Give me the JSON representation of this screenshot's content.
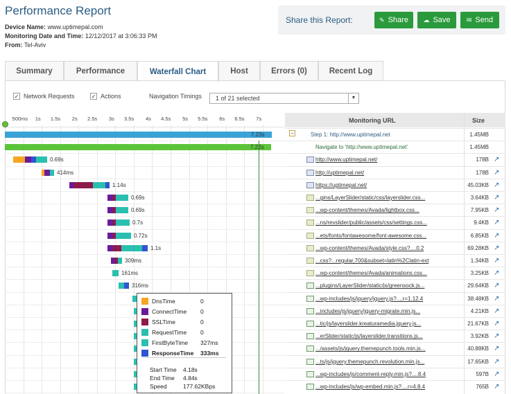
{
  "header": {
    "title": "Performance Report",
    "device_label": "Device Name:",
    "device_value": "www.uptimepal.com",
    "monitoring_label": "Monitoring Date and Time:",
    "monitoring_value": "12/12/2017 at 3:06:33 PM",
    "from_label": "From:",
    "from_value": "Tel-Aviv"
  },
  "share": {
    "title": "Share this Report:",
    "share_label": "Share",
    "save_label": "Save",
    "send_label": "Send"
  },
  "tabs": [
    "Summary",
    "Performance",
    "Waterfall Chart",
    "Host",
    "Errors (0)",
    "Recent Log"
  ],
  "active_tab": "Waterfall Chart",
  "filters": {
    "network_requests": "Network Requests",
    "actions": "Actions",
    "navigation_timings_label": "Navigation Timings",
    "navigation_timings_value": "1 of 21 selected"
  },
  "axis_ticks": [
    "500ms",
    "1s",
    "1.5s",
    "2s",
    "2.5s",
    "3s",
    "3.5s",
    "4s",
    "4.5s",
    "5s",
    "5.5s",
    "6s",
    "6.5s",
    "7s"
  ],
  "columns": {
    "url": "Monitoring URL",
    "size": "Size"
  },
  "colors": {
    "dns": "#f5a623",
    "connect": "#6a1b9a",
    "ssl": "#8e1a4a",
    "request": "#2bbfb0",
    "firstbyte": "#2bbfb0",
    "response": "#3055d0",
    "step": "#3aa3d6",
    "navigate": "#5cc43a"
  },
  "rows": [
    {
      "url": "Step 1: http://www.uptimepal.net",
      "size": "1.45MB",
      "kind": "step",
      "label": "7.23s"
    },
    {
      "url": "Navigate to 'http://www.uptimepal.net'",
      "size": "1.45MB",
      "kind": "navigate",
      "label": "7.22s"
    },
    {
      "url": "http://www.uptimepal.net/",
      "size": "178B",
      "kind": "html",
      "label": "0.69s"
    },
    {
      "url": "http://uptimepal.net/",
      "size": "178B",
      "kind": "html",
      "label": "414ms"
    },
    {
      "url": "https://uptimepal.net/",
      "size": "45.03KB",
      "kind": "html",
      "label": "1.14s"
    },
    {
      "url": "...gins/LayerSlider/static/css/layerslider.css...",
      "size": "3.64KB",
      "kind": "css",
      "label": "0.69s"
    },
    {
      "url": "...wp-content/themes/Avada/lightbox.css...",
      "size": "7.95KB",
      "kind": "css",
      "label": "0.69s"
    },
    {
      "url": "...ns/revslider/public/assets/css/settings.css...",
      "size": "9.4KB",
      "kind": "css",
      "label": "0.7s"
    },
    {
      "url": "...ets/fonts/fontawesome/font-awesome.css...",
      "size": "6.85KB",
      "kind": "css",
      "label": "0.72s"
    },
    {
      "url": "...wp-content/themes/Avada/style.css?....0.2",
      "size": "69.28KB",
      "kind": "css",
      "label": "1.1s"
    },
    {
      "url": "...css?...regular,700&subset=latin%2Clatin-ext",
      "size": "1.34KB",
      "kind": "css",
      "label": "309ms"
    },
    {
      "url": "...wp-content/themes/Avada/animations.css...",
      "size": "3.25KB",
      "kind": "css",
      "label": "161ms"
    },
    {
      "url": "...plugins/LayerSlider/static/js/greensock.js...",
      "size": "29.64KB",
      "kind": "js",
      "label": "316ms"
    },
    {
      "url": "...wp-includes/js/jquery/jquery.js?....r=1.12.4",
      "size": "38.48KB",
      "kind": "js",
      "label": ""
    },
    {
      "url": "...includes/js/jquery/jquery-migrate.min.js...",
      "size": "4.21KB",
      "kind": "js",
      "label": ""
    },
    {
      "url": "...tic/js/layerslider.kreaturamedia.jquery.js...",
      "size": "21.67KB",
      "kind": "js",
      "label": ""
    },
    {
      "url": "...erSlider/static/js/layerslider.transitions.js...",
      "size": "3.92KB",
      "kind": "js",
      "label": ""
    },
    {
      "url": ".../assets/js/jquery.themepunch.tools.min.js...",
      "size": "40.88KB",
      "kind": "js",
      "label": ""
    },
    {
      "url": "...ts/js/jquery.themepunch.revolution.min.js...",
      "size": "17.65KB",
      "kind": "js",
      "label": ""
    },
    {
      "url": "...wp-includes/js/comment-reply.min.js?....8.4",
      "size": "597B",
      "kind": "js",
      "label": ""
    },
    {
      "url": "...wp-includes/js/wp-embed.min.js?....r=4.8.4",
      "size": "765B",
      "kind": "js",
      "label": ""
    }
  ],
  "tooltip": {
    "items": [
      {
        "name": "DnsTime",
        "value": "0"
      },
      {
        "name": "ConnectTime",
        "value": "0"
      },
      {
        "name": "SSLTime",
        "value": "0"
      },
      {
        "name": "RequestTime",
        "value": "0"
      },
      {
        "name": "FirstByteTime",
        "value": "327ms"
      },
      {
        "name": "ResponseTime",
        "value": "333ms"
      }
    ],
    "start_label": "Start Time",
    "start_value": "4.18s",
    "end_label": "End Time",
    "end_value": "4.84s",
    "speed_label": "Speed",
    "speed_value": "177.62KBps"
  }
}
